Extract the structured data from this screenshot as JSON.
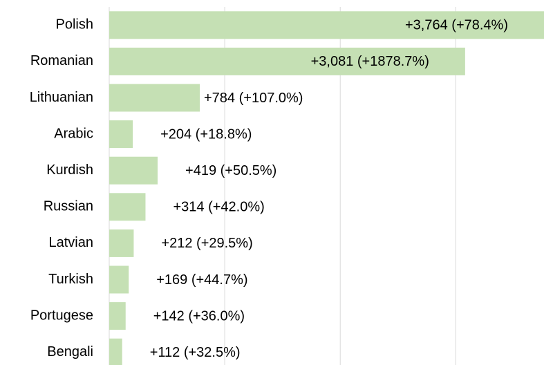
{
  "chart_data": {
    "type": "bar",
    "orientation": "horizontal",
    "categories": [
      "Polish",
      "Romanian",
      "Lithuanian",
      "Arabic",
      "Kurdish",
      "Russian",
      "Latvian",
      "Turkish",
      "Portugese",
      "Bengali"
    ],
    "values": [
      3764,
      3081,
      784,
      204,
      419,
      314,
      212,
      169,
      142,
      112
    ],
    "value_labels": [
      "+3,764 (+78.4%)",
      "+3,081 (+1878.7%)",
      "+784 (+107.0%)",
      "+204 (+18.8%)",
      "+419 (+50.5%)",
      "+314 (+42.0%)",
      "+212 (+29.5%)",
      "+169 (+44.7%)",
      "+142 (+36.0%)",
      "+112 (+32.5%)"
    ],
    "color": "#c5e0b4",
    "xlim": [
      0,
      3764
    ],
    "xticks": [
      0,
      1000,
      2000,
      3000
    ],
    "grid": true
  }
}
